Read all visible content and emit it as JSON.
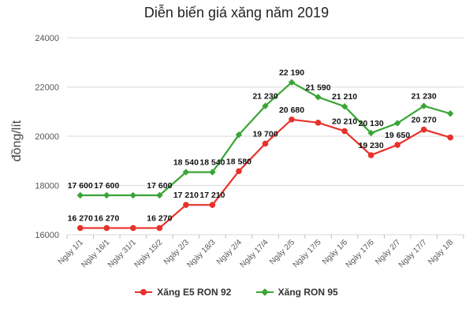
{
  "chart_data": {
    "type": "line",
    "title": "Diễn biến giá xăng năm 2019",
    "ylabel": "đồng/lít",
    "xlabel": "",
    "ylim": [
      16000,
      24000
    ],
    "yticks": [
      "16000",
      "18000",
      "20000",
      "22000",
      "24000"
    ],
    "categories": [
      "Ngày 1/1",
      "Ngày 16/1",
      "Ngày 31/1",
      "Ngày 15/2",
      "Ngày 2/3",
      "Ngày 18/3",
      "Ngày 2/4",
      "Ngày 17/4",
      "Ngày 2/5",
      "Ngày 17/5",
      "Ngày 1/6",
      "Ngày 17/6",
      "Ngày 2/7",
      "Ngày 17/7",
      "Ngày 1/8"
    ],
    "grid": "horizontal",
    "legend_position": "bottom",
    "series": [
      {
        "name": "Xăng E5 RON 92",
        "color": "#e8312a",
        "marker": "circle",
        "values": [
          16270,
          16270,
          16270,
          16270,
          17210,
          17210,
          18580,
          19700,
          20680,
          20550,
          20210,
          19230,
          19650,
          20270,
          19950
        ],
        "labels": [
          "16 270",
          "16 270",
          "",
          "16 270",
          "17 210",
          "17 210",
          "18 580",
          "19 700",
          "20 680",
          "",
          "20 210",
          "19 230",
          "19 650",
          "20 270",
          ""
        ]
      },
      {
        "name": "Xăng RON 95",
        "color": "#3aa535",
        "marker": "diamond",
        "values": [
          17600,
          17600,
          17600,
          17600,
          18540,
          18540,
          20060,
          21230,
          22190,
          21590,
          21210,
          20130,
          20530,
          21230,
          20920
        ],
        "labels": [
          "17 600",
          "17 600",
          "",
          "17 600",
          "18 540",
          "18 540",
          "",
          "21 230",
          "22 190",
          "21 590",
          "21 210",
          "20 130",
          "",
          "21 230",
          ""
        ]
      }
    ]
  }
}
